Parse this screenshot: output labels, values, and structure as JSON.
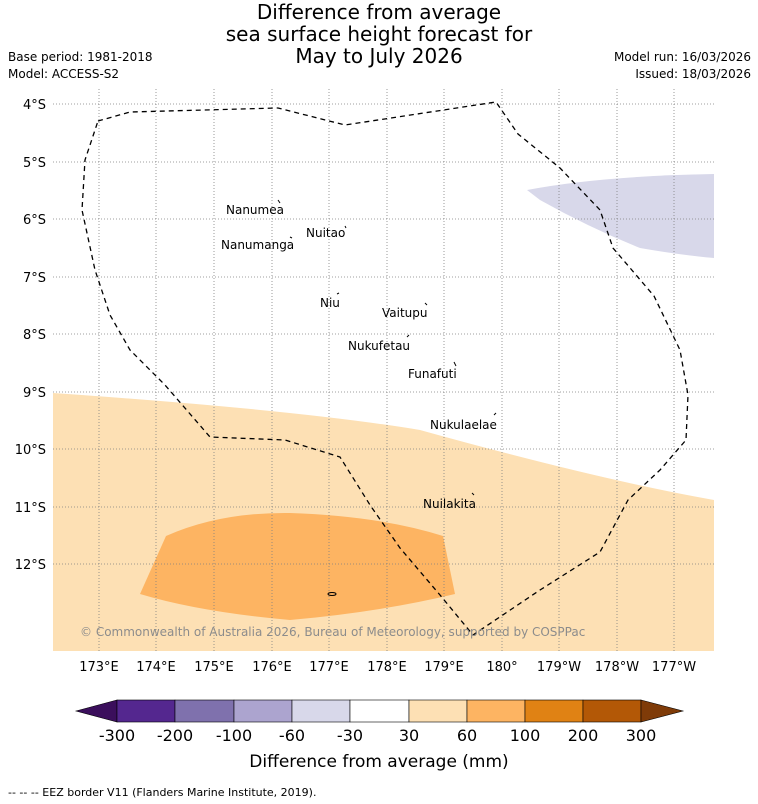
{
  "title": {
    "line1": "Difference from average",
    "line2": "sea surface height forecast for",
    "line3": "May to July 2026"
  },
  "meta": {
    "base_period": "Base period: 1981-2018",
    "model": "Model: ACCESS-S2",
    "model_run": "Model run: 16/03/2026",
    "issued": "Issued: 18/03/2026"
  },
  "map": {
    "lat_labels": [
      "4°S",
      "5°S",
      "6°S",
      "7°S",
      "8°S",
      "9°S",
      "10°S",
      "11°S",
      "12°S"
    ],
    "lon_labels": [
      "173°E",
      "174°E",
      "175°E",
      "176°E",
      "177°E",
      "178°E",
      "179°E",
      "180°",
      "179°W",
      "178°W",
      "177°W"
    ],
    "places": [
      "Nanumea",
      "Nuitao",
      "Nanumanga",
      "Niu",
      "Vaitupu",
      "Nukufetau",
      "Funafuti",
      "Nukulaelae",
      "Nuilakita"
    ],
    "copyright": "© Commonwealth of Australia 2026, Bureau of Meteorology, supported by COSPPac"
  },
  "colorbar": {
    "ticks": [
      "-300",
      "-200",
      "-100",
      "-60",
      "-30",
      "30",
      "60",
      "100",
      "200",
      "300"
    ],
    "colors": [
      "#3b0f5c",
      "#54278f",
      "#7f71ad",
      "#aca4cf",
      "#d8d8ea",
      "#ffffff",
      "#fde0b4",
      "#fdb462",
      "#e08214",
      "#b35806",
      "#7f3b08"
    ],
    "label": "Difference from average (mm)"
  },
  "legend": {
    "eez": "--  --  -- EEZ border V11 (Flanders Marine Institute, 2019)."
  }
}
